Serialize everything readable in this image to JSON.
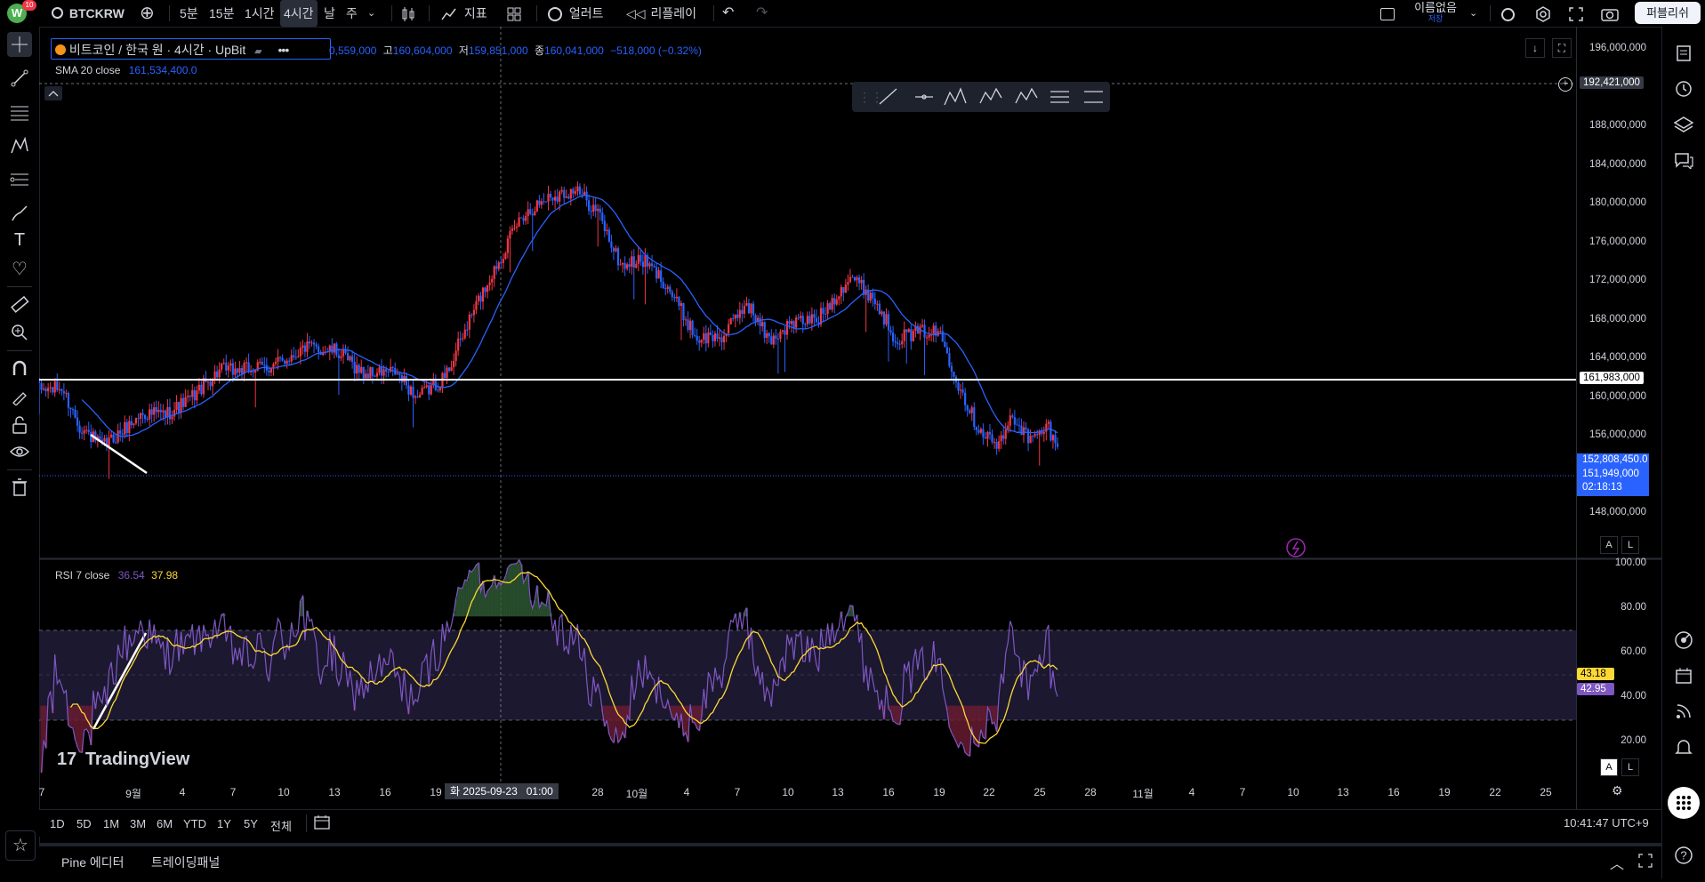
{
  "topbar": {
    "avatar_letter": "W",
    "avatar_badge": "10",
    "symbol": "BTCKRW",
    "intervals": [
      "5분",
      "15분",
      "1시간",
      "4시간",
      "날",
      "주"
    ],
    "active_interval": "4시간",
    "indicators_label": "지표",
    "alert_label": "얼러트",
    "replay_label": "리플레이",
    "layout_name": "이름없음",
    "layout_saved": "저장",
    "publish_label": "퍼블리쉬"
  },
  "legend": {
    "title": "비트코인 / 한국 원 · 4시간 · UpBit",
    "ohlc_open": "0,559,000",
    "ohlc_high_label": "고",
    "ohlc_high": "160,604,000",
    "ohlc_low_label": "저",
    "ohlc_low": "159,851,000",
    "ohlc_close_label": "종",
    "ohlc_close": "160,041,000",
    "ohlc_change": "−518,000 (−0.32%)",
    "sma_label": "SMA 20 close",
    "sma_value": "161,534,400.0",
    "rsi_label": "RSI 7 close",
    "rsi_value1": "36.54",
    "rsi_value2": "37.98"
  },
  "price_axis": {
    "labels": [
      "196,000,000",
      "192,421,000",
      "188,000,000",
      "184,000,000",
      "180,000,000",
      "176,000,000",
      "172,000,000",
      "168,000,000",
      "164,000,000",
      "161,983,000",
      "160,000,000",
      "156,000,000",
      "152,808,450.0",
      "151,949,000",
      "02:18:13",
      "148,000,000"
    ],
    "hline_price": "161,983,000",
    "crosshair_price": "192,421,000",
    "sma_tag": "152,808,450.0",
    "last_price_tag": "151,949,000",
    "countdown_tag": "02:18:13"
  },
  "rsi_axis": {
    "labels": [
      "100.00",
      "80.00",
      "60.00",
      "40.00",
      "20.00"
    ],
    "tag_ma": "43.18",
    "tag_rsi": "42.95"
  },
  "time_axis": {
    "labels": [
      "7",
      "9월",
      "4",
      "7",
      "10",
      "13",
      "16",
      "19",
      "28",
      "10월",
      "4",
      "7",
      "10",
      "13",
      "16",
      "19",
      "22",
      "25",
      "28",
      "11월",
      "4",
      "7",
      "10",
      "13",
      "16",
      "19",
      "22",
      "25"
    ],
    "crosshair_label": "화 2025-09-23   01:00"
  },
  "range_bar": {
    "ranges": [
      "1D",
      "5D",
      "1M",
      "3M",
      "6M",
      "YTD",
      "1Y",
      "5Y",
      "전체"
    ],
    "clock": "10:41:47 UTC+9"
  },
  "bottom_tabs": {
    "pine": "Pine 에디터",
    "trading": "트레이딩패널"
  },
  "watermark": "TradingView",
  "colors": {
    "up": "#f23645",
    "down": "#2962ff",
    "sma": "#2962ff",
    "rsi": "#7e57c2",
    "rsi_ma": "#fdd835",
    "band": "#1c1830"
  },
  "chart_data": {
    "type": "candlestick",
    "symbol": "BTCKRW",
    "interval": "4h",
    "ylim": [
      146000000,
      198000000
    ],
    "close_path_anchors": [
      [
        0,
        158200000
      ],
      [
        10,
        158400000
      ],
      [
        18,
        154500000
      ],
      [
        28,
        152300000
      ],
      [
        36,
        153800000
      ],
      [
        46,
        155800000
      ],
      [
        56,
        155700000
      ],
      [
        66,
        157100000
      ],
      [
        80,
        160200000
      ],
      [
        92,
        160300000
      ],
      [
        104,
        160700000
      ],
      [
        118,
        162600000
      ],
      [
        132,
        162200000
      ],
      [
        144,
        159900000
      ],
      [
        158,
        160000000
      ],
      [
        168,
        157400000
      ],
      [
        180,
        159500000
      ],
      [
        194,
        167000000
      ],
      [
        204,
        171600000
      ],
      [
        214,
        176200000
      ],
      [
        226,
        178200000
      ],
      [
        238,
        178900000
      ],
      [
        248,
        176600000
      ],
      [
        258,
        171100000
      ],
      [
        268,
        171600000
      ],
      [
        278,
        169300000
      ],
      [
        292,
        163500000
      ],
      [
        304,
        163800000
      ],
      [
        314,
        167300000
      ],
      [
        324,
        163300000
      ],
      [
        334,
        165100000
      ],
      [
        346,
        165600000
      ],
      [
        360,
        170000000
      ],
      [
        370,
        167800000
      ],
      [
        380,
        163600000
      ],
      [
        394,
        164300000
      ],
      [
        400,
        164000000
      ],
      [
        408,
        158900000
      ],
      [
        416,
        154600000
      ],
      [
        426,
        152300000
      ],
      [
        432,
        155600000
      ],
      [
        440,
        152900000
      ],
      [
        448,
        154400000
      ],
      [
        452,
        151900000
      ]
    ],
    "sma_label": "SMA 20 close",
    "rsi": {
      "period": 7,
      "overbought": 70,
      "oversold": 30,
      "last": 42.95,
      "ma_last": 43.18
    }
  }
}
